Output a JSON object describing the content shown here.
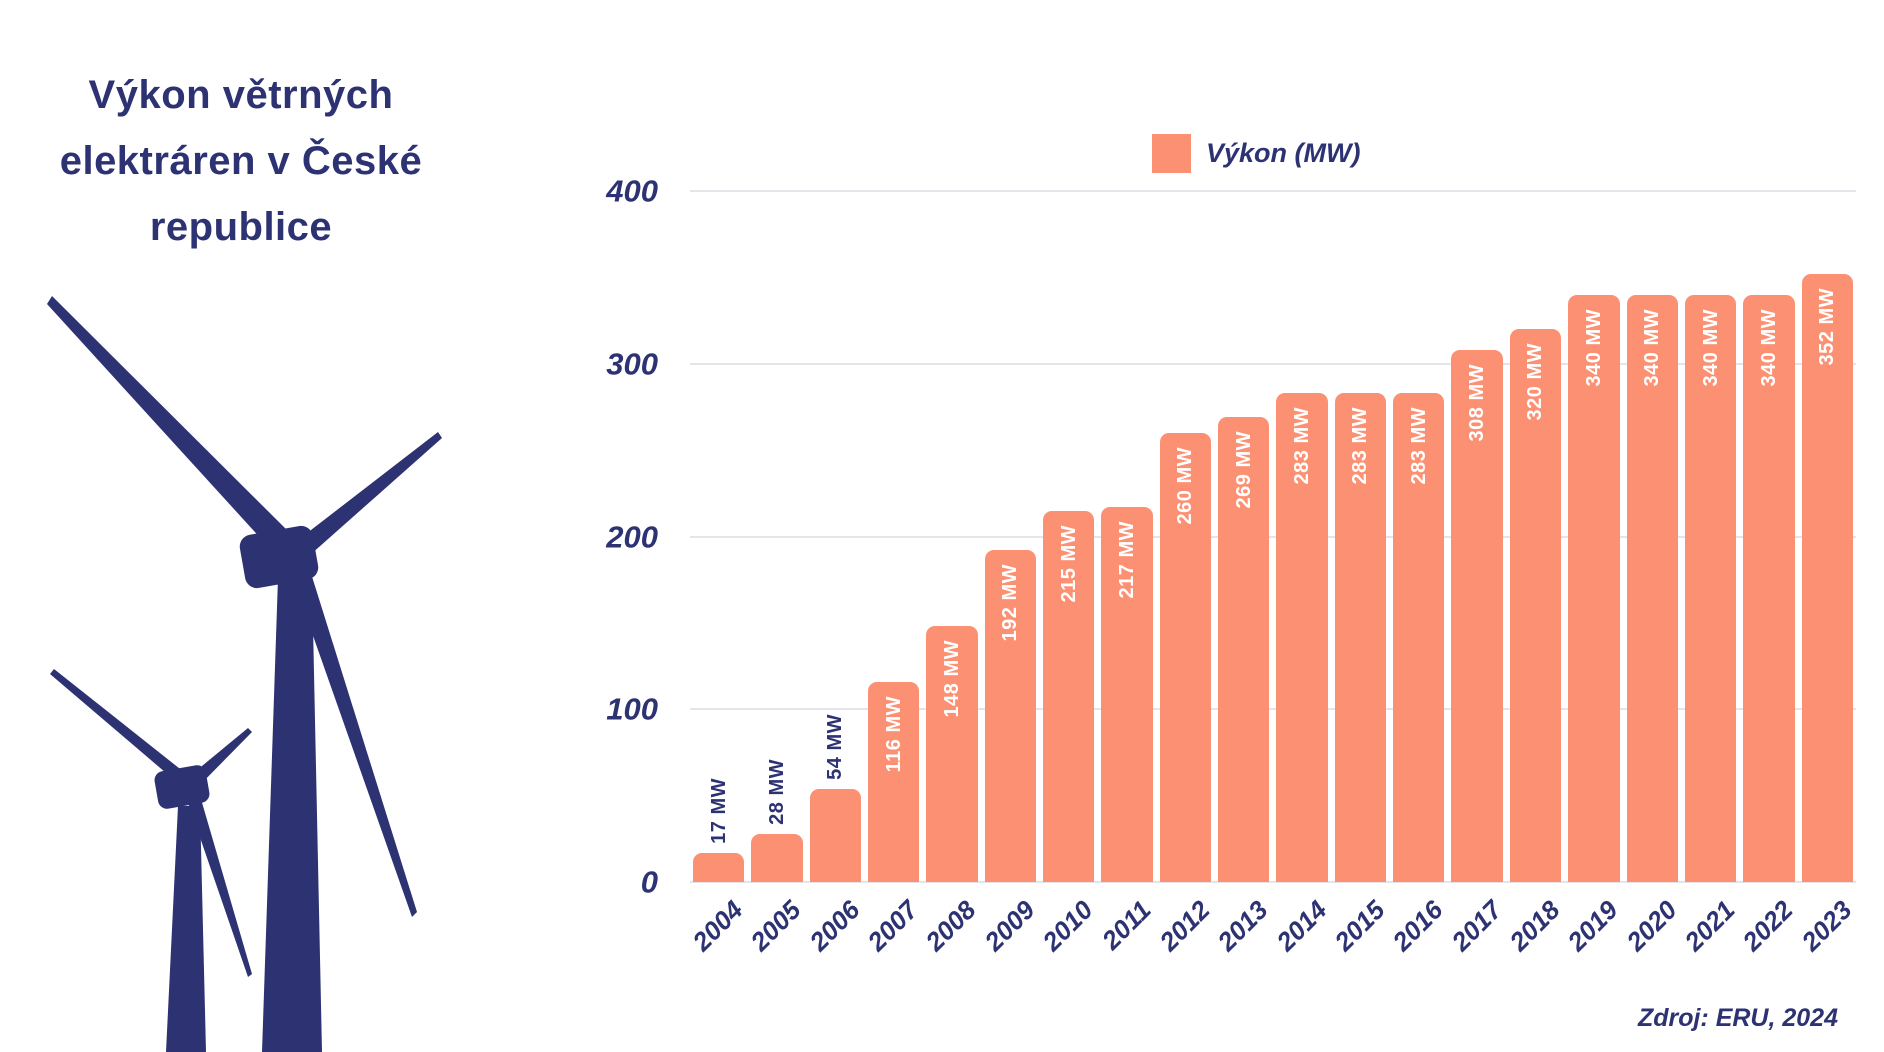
{
  "title": "Výkon větrných elektráren v České republice",
  "title_lines": [
    "Výkon větrných",
    "elektráren v České",
    "republice"
  ],
  "legend_label": "Výkon (MW)",
  "source": "Zdroj: ERU, 2024",
  "colors": {
    "accent": "#fb9172",
    "navy": "#2d3273",
    "grid": "#e4e4ea",
    "background": "#ffffff"
  },
  "icons": {
    "illustration": "wind-turbines"
  },
  "chart_data": {
    "type": "bar",
    "title": "",
    "legend": [
      "Výkon (MW)"
    ],
    "legend_position": "top",
    "categories": [
      "2004",
      "2005",
      "2006",
      "2007",
      "2008",
      "2009",
      "2010",
      "2011",
      "2012",
      "2013",
      "2014",
      "2015",
      "2016",
      "2017",
      "2018",
      "2019",
      "2020",
      "2021",
      "2022",
      "2023"
    ],
    "values": [
      17,
      28,
      54,
      116,
      148,
      192,
      215,
      217,
      260,
      269,
      283,
      283,
      283,
      308,
      320,
      340,
      340,
      340,
      340,
      352
    ],
    "bar_labels": [
      "17 MW",
      "28 MW",
      "54 MW",
      "116 MW",
      "148 MW",
      "192 MW",
      "215 MW",
      "217 MW",
      "260 MW",
      "269 MW",
      "283 MW",
      "283 MW",
      "283 MW",
      "308 MW",
      "320 MW",
      "340 MW",
      "340 MW",
      "340 MW",
      "340 MW",
      "352 MW"
    ],
    "unit": "MW",
    "xlabel": "",
    "ylabel": "",
    "ylim": [
      0,
      400
    ],
    "yticks": [
      0,
      100,
      200,
      300,
      400
    ],
    "grid": true,
    "label_inside_min": 100
  }
}
